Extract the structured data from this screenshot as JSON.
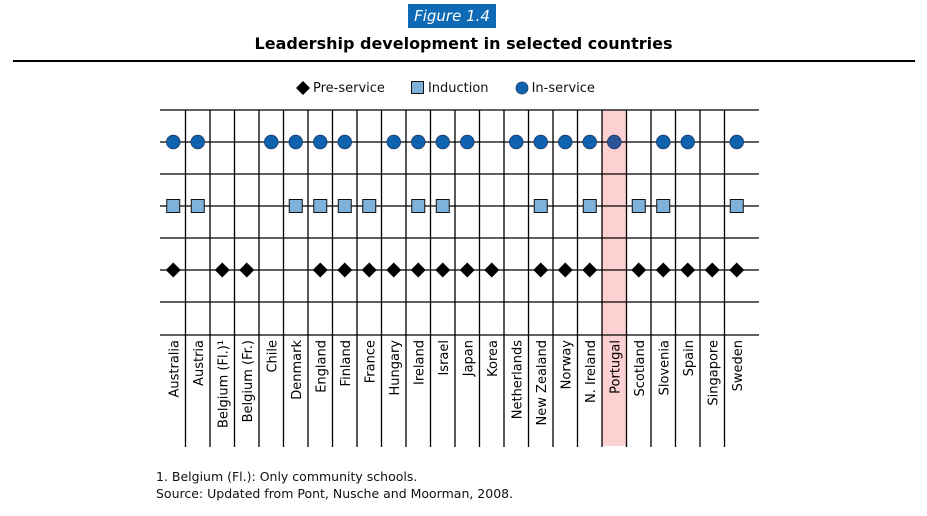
{
  "figure_label": "Figure 1.4",
  "chart_data": {
    "type": "table",
    "title": "Leadership development in selected countries",
    "legend": [
      {
        "key": "pre_service",
        "label": "Pre-service",
        "marker": "diamond",
        "color": "#000000"
      },
      {
        "key": "induction",
        "label": "Induction",
        "marker": "square",
        "color": "#7eb2da"
      },
      {
        "key": "in_service",
        "label": "In-service",
        "marker": "circle",
        "color": "#0e62ae"
      }
    ],
    "legend_position": "top-center",
    "rows": [
      "In-service",
      "Induction",
      "Pre-service"
    ],
    "categories": [
      "Australia",
      "Austria",
      "Belgium (Fl.)¹",
      "Belgium (Fr.)",
      "Chile",
      "Denmark",
      "England",
      "Finland",
      "France",
      "Hungary",
      "Ireland",
      "Israel",
      "Japan",
      "Korea",
      "Netherlands",
      "New Zealand",
      "Norway",
      "N. Ireland",
      "Portugal",
      "Scotland",
      "Slovenia",
      "Spain",
      "Singapore",
      "Sweden"
    ],
    "highlighted_category": "Portugal",
    "highlight_color": "#fdd0d2",
    "series": [
      {
        "name": "In-service",
        "values": [
          1,
          1,
          0,
          0,
          1,
          1,
          1,
          1,
          0,
          1,
          1,
          1,
          1,
          0,
          1,
          1,
          1,
          1,
          1,
          0,
          1,
          1,
          0,
          1
        ]
      },
      {
        "name": "Induction",
        "values": [
          1,
          1,
          0,
          0,
          0,
          1,
          1,
          1,
          1,
          0,
          1,
          1,
          0,
          0,
          0,
          1,
          0,
          1,
          0,
          1,
          1,
          0,
          0,
          1
        ]
      },
      {
        "name": "Pre-service",
        "values": [
          1,
          0,
          1,
          1,
          0,
          0,
          1,
          1,
          1,
          1,
          1,
          1,
          1,
          1,
          0,
          1,
          1,
          1,
          0,
          1,
          1,
          1,
          1,
          1
        ]
      }
    ]
  },
  "footnotes": [
    "1. Belgium (Fl.): Only community schools.",
    "Source: Updated from Pont, Nusche and Moorman, 2008."
  ]
}
